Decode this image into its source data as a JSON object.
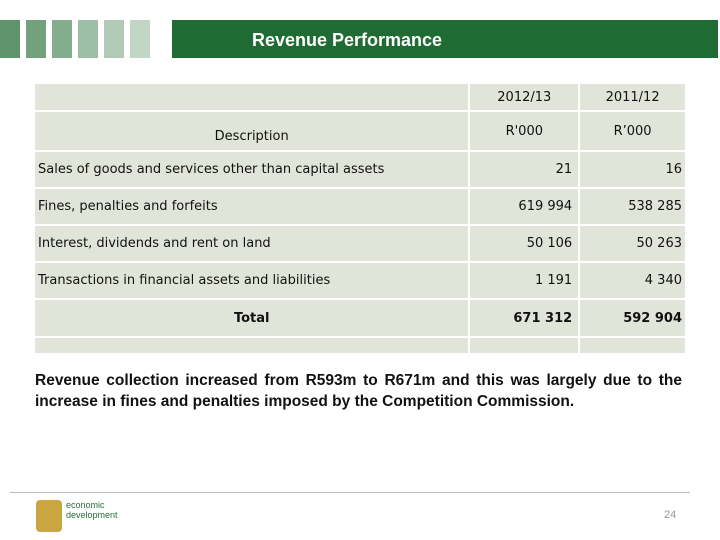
{
  "header": {
    "title": "Revenue Performance"
  },
  "table": {
    "header": {
      "description": "Description",
      "years": [
        "2012/13",
        "2011/12"
      ],
      "units": [
        "R'000",
        "R’000"
      ]
    },
    "rows": [
      [
        "Sales of goods and services other than capital assets",
        "21",
        "16"
      ],
      [
        "Fines, penalties and forfeits",
        "619 994",
        "538 285"
      ],
      [
        "Interest, dividends and rent on land",
        "50 106",
        "50 263"
      ],
      [
        "Transactions in financial assets and liabilities",
        "1 191",
        "4 340"
      ]
    ],
    "total": [
      "Total",
      "671 312",
      "592 904"
    ]
  },
  "summary": "Revenue collection increased from R593m to R671m and this was largely due to the increase in fines and penalties imposed by the Competition Commission.",
  "footer": {
    "logo_text": [
      "economic",
      "development"
    ],
    "page_number": "24"
  }
}
